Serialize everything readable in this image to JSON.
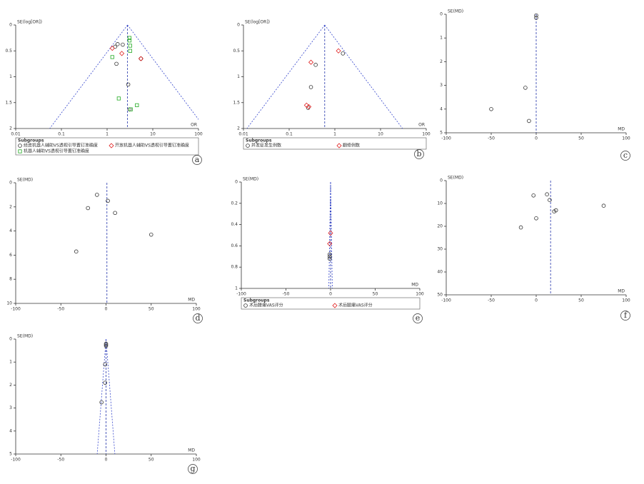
{
  "chart_data": [
    {
      "type": "scatter",
      "panel_label": "a",
      "y_label": "SE(log[OR])",
      "x_label": "OR",
      "log_x": true,
      "y_inverted": true,
      "funnel": true,
      "pooled_estimate": 2.8,
      "xlim": [
        0.01,
        100
      ],
      "ylim": [
        0,
        2
      ],
      "xticks": [
        0.01,
        0.1,
        1,
        10,
        100
      ],
      "yticks": [
        0,
        0.5,
        1,
        1.5,
        2
      ],
      "legend_title": "Subgroups",
      "series": [
        {
          "name": "经皮机器人辅助VS透视引导置钉准确度",
          "marker": "circle",
          "color": "#333333",
          "x": [
            1.5,
            1.6,
            2.9,
            3.1,
            5.5,
            2.2,
            1.7
          ],
          "y": [
            0.42,
            0.75,
            1.15,
            1.63,
            0.65,
            0.38,
            0.37
          ]
        },
        {
          "name": "开放机器人辅助VS透视引导置钉准确度",
          "marker": "diamond",
          "color": "#e02020",
          "x": [
            1.3,
            2.1,
            5.5
          ],
          "y": [
            0.45,
            0.55,
            0.65
          ]
        },
        {
          "name": "机器人辅助VS透视引导置钉准确度",
          "marker": "square",
          "color": "#22aa22",
          "x": [
            3.1,
            3.1,
            3.2,
            1.3,
            1.8,
            3.3,
            4.5,
            3.2
          ],
          "y": [
            0.25,
            0.3,
            0.4,
            0.62,
            1.42,
            1.63,
            1.55,
            0.5
          ]
        }
      ]
    },
    {
      "type": "scatter",
      "panel_label": "b",
      "y_label": "SE(log[OR])",
      "x_label": "OR",
      "log_x": true,
      "y_inverted": true,
      "funnel": true,
      "pooled_estimate": 0.6,
      "xlim": [
        0.01,
        100
      ],
      "ylim": [
        0,
        2
      ],
      "xticks": [
        0.01,
        0.1,
        1,
        10,
        100
      ],
      "yticks": [
        0,
        0.5,
        1,
        1.5,
        2
      ],
      "legend_title": "Subgroups",
      "series": [
        {
          "name": "并发症发生例数",
          "marker": "circle",
          "color": "#333333",
          "x": [
            0.38,
            0.3,
            1.5,
            0.26
          ],
          "y": [
            0.77,
            1.2,
            0.55,
            1.6
          ]
        },
        {
          "name": "翻修例数",
          "marker": "diamond",
          "color": "#e02020",
          "x": [
            0.3,
            1.2,
            0.24,
            0.27
          ],
          "y": [
            0.72,
            0.5,
            1.55,
            1.58
          ]
        }
      ]
    },
    {
      "type": "scatter",
      "panel_label": "c",
      "y_label": "SE(MD)",
      "x_label": "MD",
      "log_x": false,
      "y_inverted": true,
      "funnel": false,
      "pooled_estimate": 0,
      "xlim": [
        -100,
        100
      ],
      "ylim": [
        0,
        5
      ],
      "xticks": [
        -100,
        -50,
        0,
        50,
        100
      ],
      "yticks": [
        0,
        1,
        2,
        3,
        4,
        5
      ],
      "series": [
        {
          "marker": "circle",
          "color": "#333333",
          "x": [
            0,
            0,
            -12,
            -50,
            -8
          ],
          "y": [
            0.05,
            0.15,
            3.1,
            4,
            4.5
          ]
        }
      ]
    },
    {
      "type": "scatter",
      "panel_label": "d",
      "y_label": "SE(MD)",
      "x_label": "MD",
      "log_x": false,
      "y_inverted": true,
      "funnel": false,
      "pooled_estimate": 1,
      "xlim": [
        -100,
        100
      ],
      "ylim": [
        0,
        10
      ],
      "xticks": [
        -100,
        -50,
        0,
        50,
        100
      ],
      "yticks": [
        0,
        2,
        4,
        6,
        8,
        10
      ],
      "series": [
        {
          "marker": "circle",
          "color": "#333333",
          "x": [
            -10,
            2,
            -20,
            10,
            50,
            -33
          ],
          "y": [
            1,
            1.5,
            2.1,
            2.5,
            4.3,
            5.7
          ]
        }
      ]
    },
    {
      "type": "scatter",
      "panel_label": "e",
      "y_label": "SE(MD)",
      "x_label": "MD",
      "log_x": false,
      "y_inverted": true,
      "funnel": true,
      "pooled_estimate": 0,
      "xlim": [
        -100,
        100
      ],
      "ylim": [
        0,
        1
      ],
      "xticks": [
        -100,
        -50,
        0,
        50,
        100
      ],
      "yticks": [
        0,
        0.2,
        0.4,
        0.6,
        0.8,
        1
      ],
      "legend_title": "Subgroups",
      "series": [
        {
          "name": "术后腰痛VAS评分",
          "marker": "circle",
          "color": "#333333",
          "x": [
            -1,
            -1,
            -1
          ],
          "y": [
            0.68,
            0.7,
            0.72
          ]
        },
        {
          "name": "术后腿痛VAS评分",
          "marker": "diamond",
          "color": "#e02020",
          "x": [
            0,
            -1
          ],
          "y": [
            0.48,
            0.58
          ]
        }
      ]
    },
    {
      "type": "scatter",
      "panel_label": "f",
      "y_label": "SE(MD)",
      "x_label": "MD",
      "log_x": false,
      "y_inverted": true,
      "funnel": false,
      "pooled_estimate": 16,
      "xlim": [
        -100,
        100
      ],
      "ylim": [
        0,
        50
      ],
      "xticks": [
        -100,
        -50,
        0,
        50,
        100
      ],
      "yticks": [
        0,
        10,
        20,
        30,
        40,
        50
      ],
      "series": [
        {
          "marker": "circle",
          "color": "#333333",
          "x": [
            -3,
            12,
            15,
            0,
            20,
            22,
            75,
            -17
          ],
          "y": [
            6.5,
            6,
            8.5,
            16.5,
            13.5,
            13,
            11,
            20.5
          ]
        }
      ]
    },
    {
      "type": "scatter",
      "panel_label": "g",
      "y_label": "SE(MD)",
      "x_label": "MD",
      "log_x": false,
      "y_inverted": true,
      "funnel": true,
      "pooled_estimate": 0,
      "xlim": [
        -100,
        100
      ],
      "ylim": [
        0,
        5
      ],
      "xticks": [
        -100,
        -50,
        0,
        50,
        100
      ],
      "yticks": [
        0,
        1,
        2,
        3,
        4,
        5
      ],
      "series": [
        {
          "marker": "circle",
          "color": "#333333",
          "x": [
            0,
            0,
            0,
            -1,
            -1,
            -5
          ],
          "y": [
            0.2,
            0.25,
            0.3,
            1.1,
            1.9,
            2.75
          ]
        }
      ]
    }
  ]
}
